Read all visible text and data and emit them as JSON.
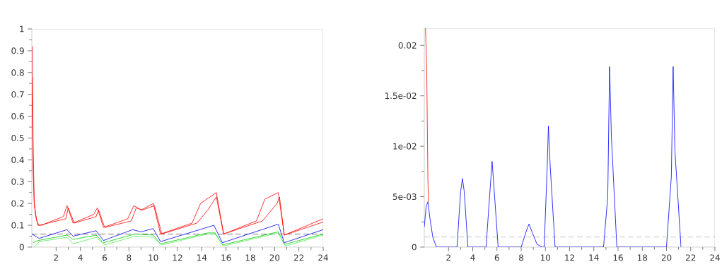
{
  "chart_data": [
    {
      "type": "line",
      "xlim": [
        0,
        24
      ],
      "ylim": [
        0,
        1
      ],
      "xticks": [
        2,
        4,
        6,
        8,
        10,
        12,
        14,
        16,
        18,
        20,
        22,
        24
      ],
      "yticks": [
        0,
        0.1,
        0.2,
        0.3,
        0.4,
        0.5,
        0.6,
        0.7,
        0.8,
        0.9,
        1
      ],
      "line_style": "solid",
      "marker": "none",
      "series": [
        {
          "color": "#ff0000",
          "x": [
            0.05,
            0.1,
            0.2,
            0.3,
            0.5,
            0.8,
            2.6,
            2.9,
            3.4,
            5.1,
            5.4,
            5.9,
            7.9,
            8.4,
            9.0,
            10.0,
            10.6,
            13.2,
            13.9,
            15.2,
            15.8,
            18.5,
            19.2,
            20.3,
            20.8,
            24
          ],
          "values": [
            0.92,
            0.5,
            0.2,
            0.15,
            0.1,
            0.1,
            0.14,
            0.19,
            0.11,
            0.15,
            0.18,
            0.09,
            0.13,
            0.19,
            0.17,
            0.2,
            0.06,
            0.11,
            0.2,
            0.25,
            0.06,
            0.12,
            0.22,
            0.25,
            0.055,
            0.13
          ]
        },
        {
          "color": "#ff0000",
          "x": [
            0,
            0.1,
            0.2,
            0.4,
            0.6,
            2.8,
            3.0,
            3.5,
            5.3,
            5.5,
            6.0,
            8.2,
            8.6,
            9.1,
            10.1,
            10.7,
            13.6,
            14.5,
            15.2,
            15.8,
            19.0,
            20.2,
            20.4,
            20.8,
            24
          ],
          "values": [
            0.78,
            0.35,
            0.2,
            0.12,
            0.1,
            0.13,
            0.18,
            0.11,
            0.14,
            0.17,
            0.09,
            0.12,
            0.18,
            0.17,
            0.19,
            0.06,
            0.11,
            0.17,
            0.23,
            0.06,
            0.12,
            0.2,
            0.23,
            0.055,
            0.115
          ]
        },
        {
          "color": "#0000ff",
          "x": [
            0,
            0.6,
            2.9,
            3.4,
            5.3,
            5.9,
            8.3,
            9.0,
            10.0,
            10.6,
            15.0,
            15.7,
            20.3,
            20.8,
            24
          ],
          "values": [
            0.06,
            0.04,
            0.08,
            0.05,
            0.075,
            0.03,
            0.08,
            0.07,
            0.085,
            0.025,
            0.1,
            0.02,
            0.105,
            0.02,
            0.08
          ]
        },
        {
          "color": "#00cc00",
          "x": [
            0.1,
            0.5,
            2.9,
            3.4,
            5.3,
            5.9,
            8.5,
            10.0,
            10.6,
            14.5,
            15.1,
            15.7,
            20.3,
            20.8,
            24
          ],
          "values": [
            0.02,
            0.03,
            0.055,
            0.035,
            0.055,
            0.02,
            0.06,
            0.055,
            0.015,
            0.065,
            0.065,
            0.01,
            0.07,
            0.012,
            0.06
          ]
        },
        {
          "color": "#55ee55",
          "x": [
            0.2,
            0.6,
            2.9,
            3.4,
            5.3,
            6.0,
            8.5,
            10.0,
            10.7,
            14.5,
            15.1,
            15.8,
            20.3,
            20.9,
            24
          ],
          "values": [
            0.0,
            0.025,
            0.045,
            0.015,
            0.045,
            0.01,
            0.05,
            0.045,
            0.01,
            0.06,
            0.06,
            0.005,
            0.065,
            0.005,
            0.055
          ]
        }
      ],
      "ref_lines": [
        {
          "axis": "y",
          "value": 0.06,
          "color": "#000000",
          "line_style": "dashed"
        }
      ]
    },
    {
      "type": "line",
      "xlim": [
        0,
        24
      ],
      "ylim": [
        0,
        0.0217
      ],
      "xticks": [
        2,
        4,
        6,
        8,
        10,
        12,
        14,
        16,
        18,
        20,
        22,
        24
      ],
      "yticks": [
        0,
        {
          "value": 0.005,
          "label": "5e-03"
        },
        {
          "value": 0.01,
          "label": "1e-02"
        },
        {
          "value": 0.015,
          "label": "1.5e-02"
        },
        0.02
      ],
      "line_style": "solid",
      "marker": "none",
      "series": [
        {
          "color": "#ff0000",
          "x": [
            0.1,
            0.2,
            0.3,
            0.35
          ],
          "values": [
            0.0217,
            0.0175,
            0.0065,
            0.0045
          ]
        },
        {
          "color": "#0000ff",
          "x": [
            0,
            0.15,
            0.3,
            0.45,
            0.7,
            1.0,
            2.7,
            3.0,
            3.15,
            3.3,
            3.6,
            5.1,
            5.45,
            5.6,
            5.75,
            6.1,
            8.0,
            8.4,
            8.65,
            8.9,
            9.3,
            9.7,
            9.9,
            10.15,
            10.25,
            10.4,
            10.8,
            14.8,
            15.15,
            15.3,
            15.45,
            15.9,
            20.0,
            20.4,
            20.55,
            20.7,
            21.2
          ],
          "values": [
            0.002,
            0.004,
            0.0045,
            0.003,
            0.001,
            0,
            0,
            0.0055,
            0.0068,
            0.0055,
            0,
            0,
            0.006,
            0.0085,
            0.006,
            0,
            0,
            0.0015,
            0.0023,
            0.0015,
            0.0003,
            0,
            0,
            0.008,
            0.012,
            0.008,
            0,
            0,
            0.005,
            0.0179,
            0.011,
            0,
            0,
            0.007,
            0.0179,
            0.0095,
            0
          ]
        }
      ],
      "ref_lines": [
        {
          "axis": "y",
          "value": 0.001,
          "color": "#999999",
          "line_style": "dashed"
        }
      ]
    }
  ]
}
